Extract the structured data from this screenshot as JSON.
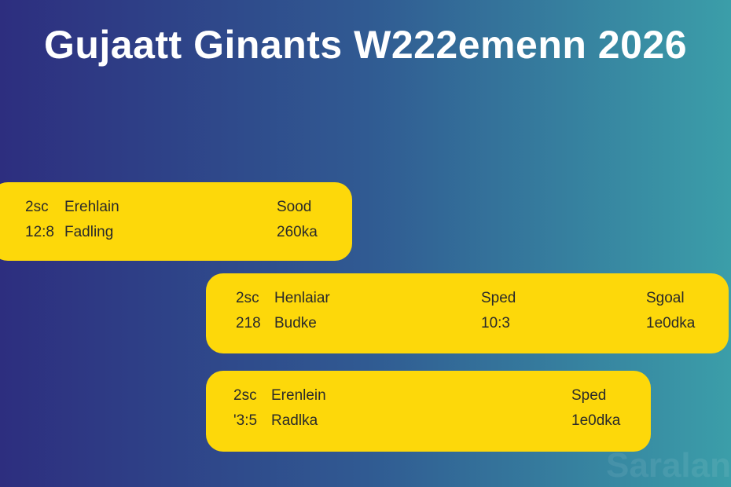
{
  "title": "Gujaatt Ginants W222emenn 2026",
  "cards": [
    {
      "rows": [
        [
          "2sc",
          "Erehlain",
          "Sood"
        ],
        [
          "12:8",
          "Fadling",
          "260ka"
        ]
      ]
    },
    {
      "rows": [
        [
          "2sc",
          "Henlaiar",
          "Sped",
          "Sgoal"
        ],
        [
          "218",
          "Budke",
          "10:3",
          "1e0dka"
        ]
      ]
    },
    {
      "rows": [
        [
          "2sc",
          "Erenlein",
          "Sped"
        ],
        [
          "'3:5",
          "Radlka",
          "1e0dka"
        ]
      ]
    }
  ],
  "watermark": "Saralan"
}
